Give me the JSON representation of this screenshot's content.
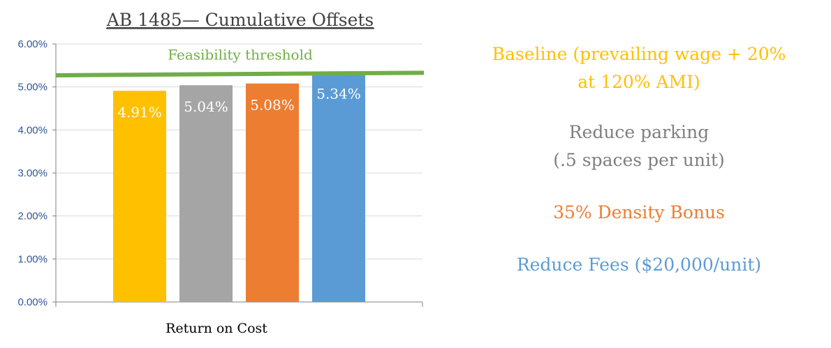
{
  "chart_data": {
    "type": "bar",
    "title": "AB 1485— Cumulative Offsets",
    "xlabel": "Return on Cost",
    "ylabel": "",
    "ylim": [
      0,
      6
    ],
    "yticks": [
      "0.00%",
      "1.00%",
      "2.00%",
      "3.00%",
      "4.00%",
      "5.00%",
      "6.00%"
    ],
    "grid": true,
    "categories": [
      "Baseline (prevailing wage + 20% at 120% AMI)",
      "Reduce parking (.5 spaces per unit)",
      "35% Density Bonus",
      "Reduce Fees ($20,000/unit)"
    ],
    "values": [
      4.91,
      5.04,
      5.08,
      5.34
    ],
    "value_labels": [
      "4.91%",
      "5.04%",
      "5.08%",
      "5.34%"
    ],
    "colors": [
      "#ffc000",
      "#a5a5a5",
      "#ed7d31",
      "#5b9bd5"
    ],
    "threshold": {
      "label": "Feasibility threshold",
      "y_start": 5.27,
      "y_end": 5.33,
      "color": "#70ad47"
    },
    "legend_placement": "right"
  },
  "legend": {
    "items": [
      {
        "lines": [
          "Baseline (prevailing wage + 20%",
          "at 120% AMI)"
        ],
        "color": "#ffc000"
      },
      {
        "lines": [
          "Reduce parking",
          "(.5 spaces per unit)"
        ],
        "color": "#7f7f7f"
      },
      {
        "lines": [
          "35% Density Bonus"
        ],
        "color": "#ed7d31"
      },
      {
        "lines": [
          "Reduce Fees ($20,000/unit)"
        ],
        "color": "#5b9bd5"
      }
    ]
  }
}
